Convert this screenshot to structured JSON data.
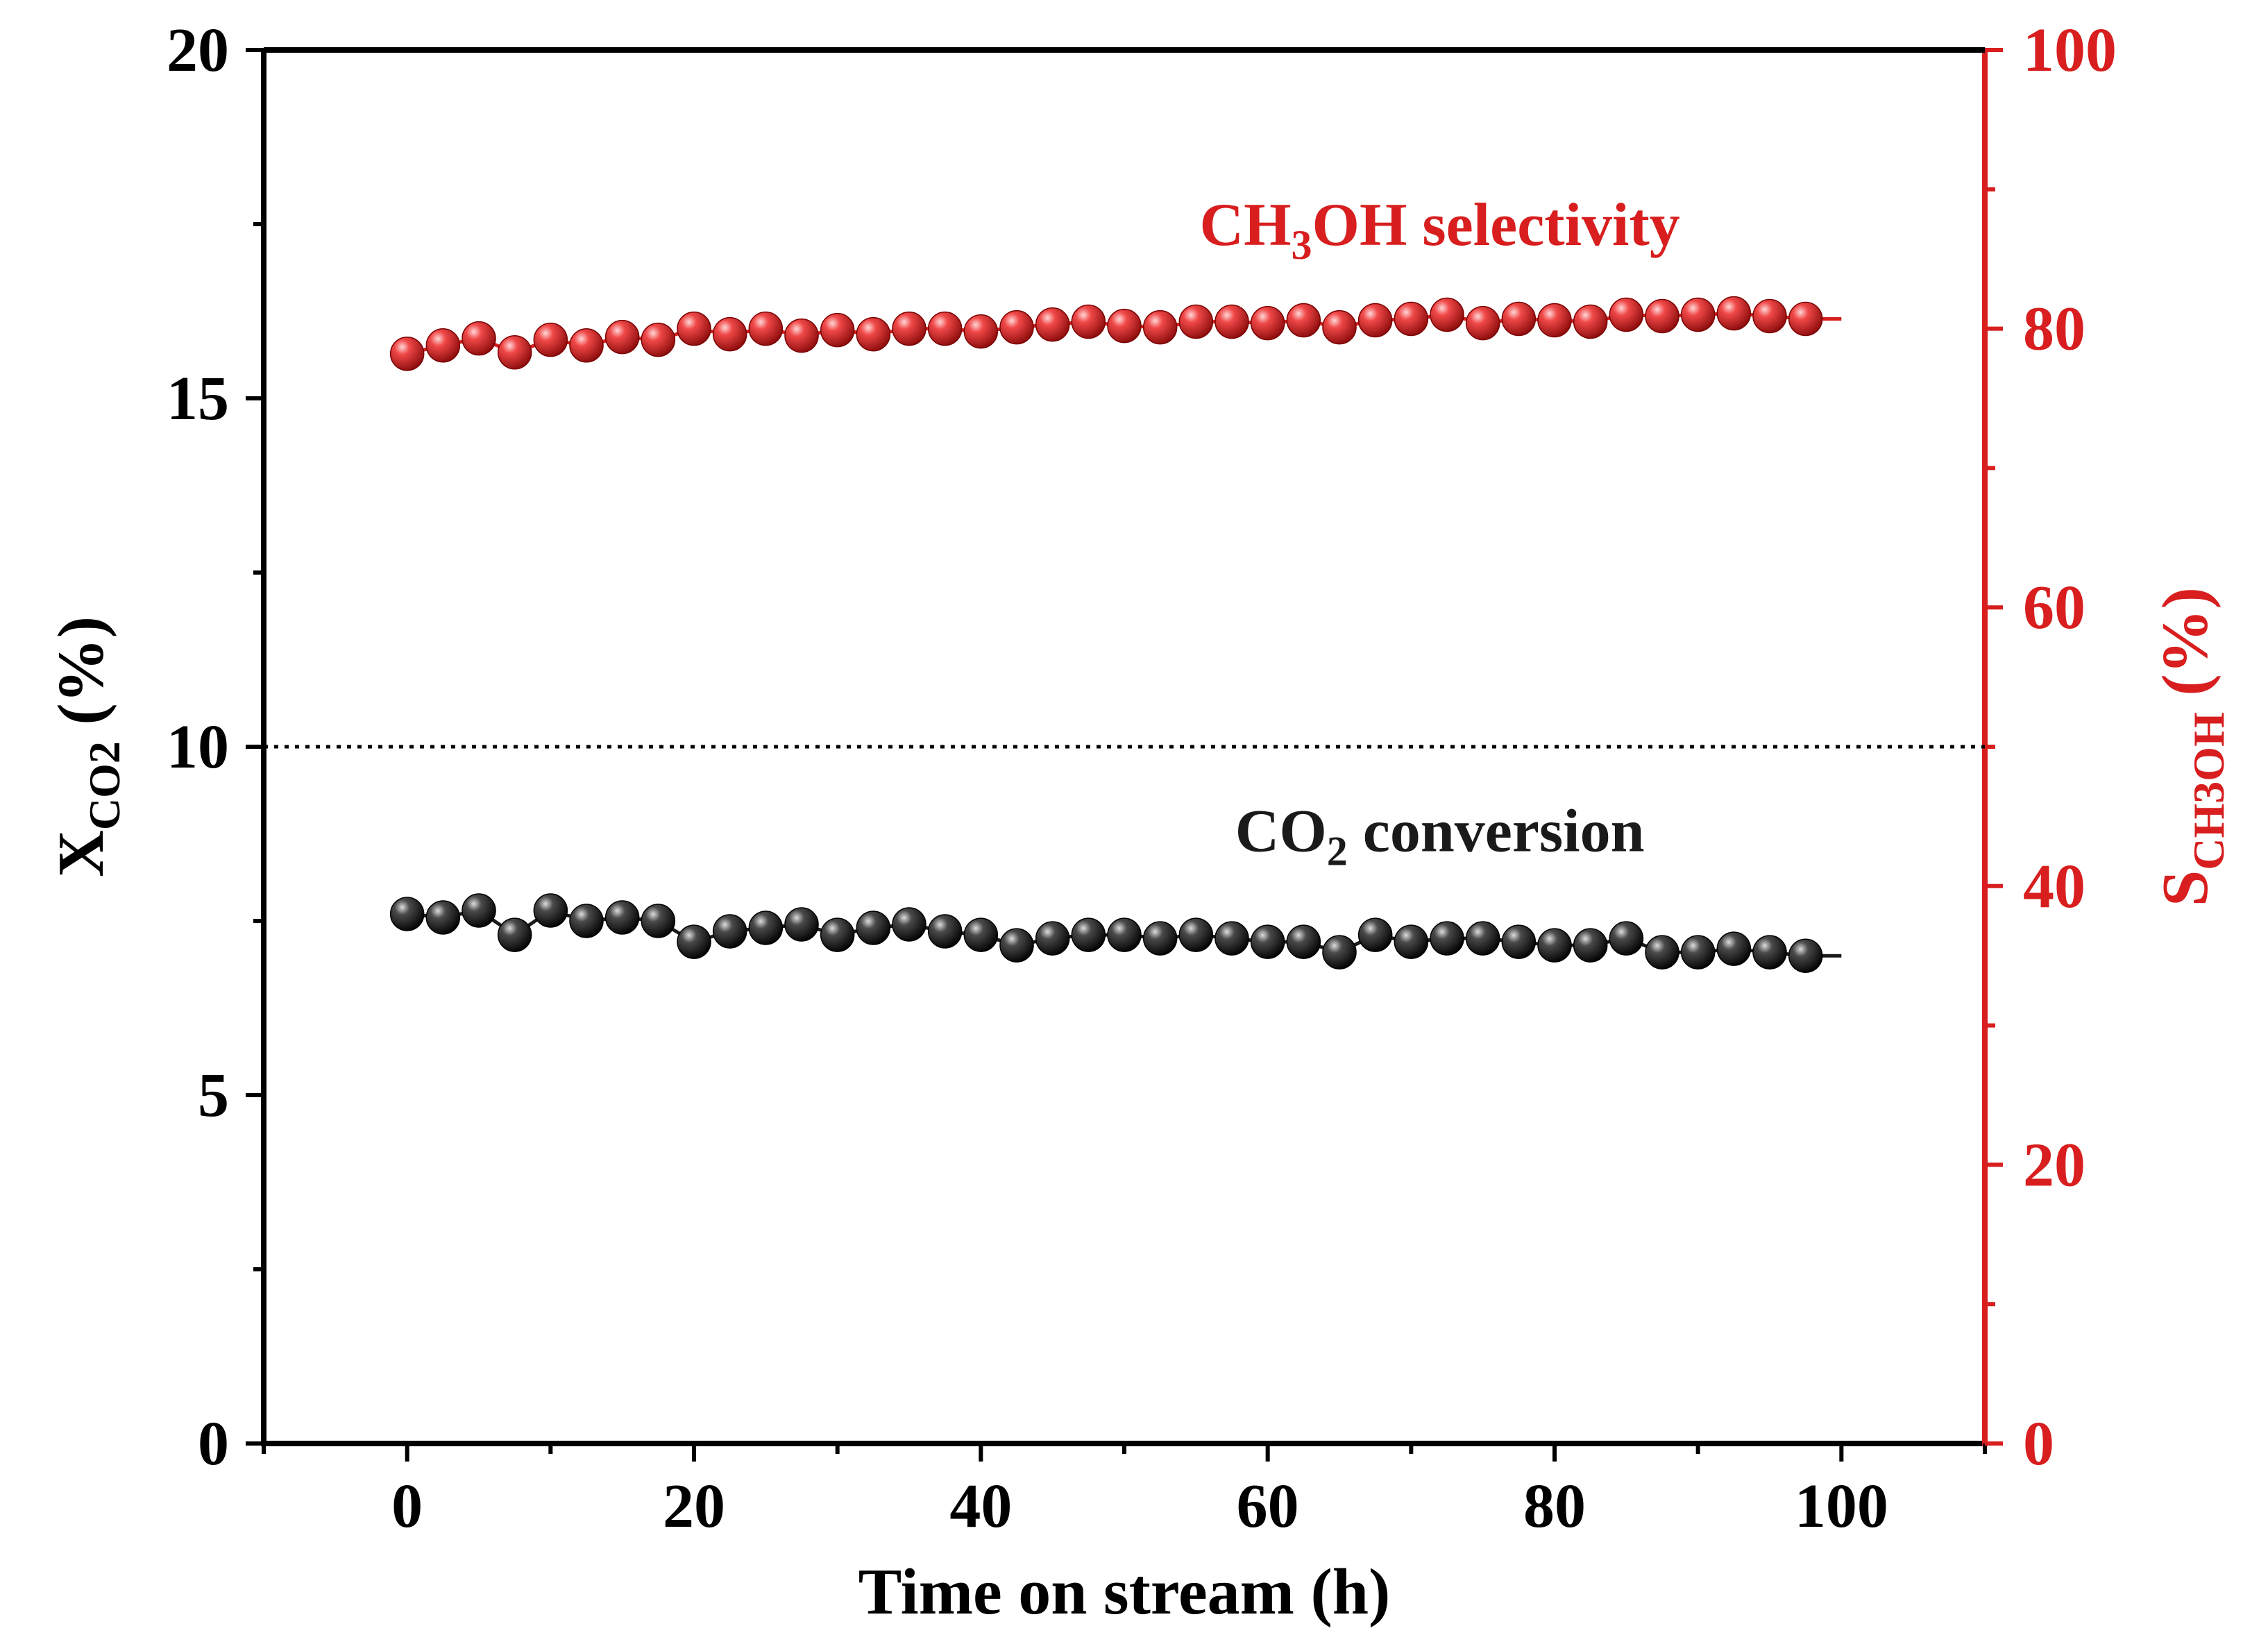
{
  "chart_data": {
    "type": "scatter",
    "xlabel": "Time on stream (h)",
    "ylabel_left": {
      "main": "X",
      "sub": "CO2",
      "suffix": " (%)"
    },
    "ylabel_right": {
      "main": "S",
      "sub": "CH3OH",
      "suffix": " (%)"
    },
    "xlim": [
      -10,
      110
    ],
    "ylim_left": [
      0,
      20
    ],
    "ylim_right": [
      0,
      100
    ],
    "x_ticks": [
      0,
      20,
      40,
      60,
      80,
      100
    ],
    "y_left_ticks": [
      0,
      5,
      10,
      15,
      20
    ],
    "y_right_ticks": [
      0,
      20,
      40,
      60,
      80,
      100
    ],
    "x_tick_labels": [
      "0",
      "20",
      "40",
      "60",
      "80",
      "100"
    ],
    "y_left_tick_labels": [
      "0",
      "5",
      "10",
      "15",
      "20"
    ],
    "y_right_tick_labels": [
      "0",
      "20",
      "40",
      "60",
      "80",
      "100"
    ],
    "reference_line": {
      "axis": "left",
      "y": 10,
      "style": "dotted"
    },
    "colors": {
      "left_axis": "#000000",
      "right_axis": "#d81e1e",
      "ch3oh": "#d81e1e",
      "co2": "#1a1a1a"
    },
    "annotations": [
      {
        "id": "ch3oh",
        "main": "CH",
        "sub": "3",
        "rest": "OH selectivity",
        "x": 72,
        "y_right": 86,
        "color": "#d81e1e"
      },
      {
        "id": "co2",
        "main": "CO",
        "sub": "2",
        "rest": " conversion",
        "x": 72,
        "y_left": 8.5,
        "color": "#1a1a1a"
      }
    ],
    "series": [
      {
        "name": "CH3OH selectivity",
        "axis": "right",
        "x": [
          0,
          2.5,
          5,
          7.5,
          10,
          12.5,
          15,
          17.5,
          20,
          22.5,
          25,
          27.5,
          30,
          32.5,
          35,
          37.5,
          40,
          42.5,
          45,
          47.5,
          50,
          52.5,
          55,
          57.5,
          60,
          62.5,
          65,
          67.5,
          70,
          72.5,
          75,
          77.5,
          80,
          82.5,
          85,
          87.5,
          90,
          92.5,
          95,
          97.5
        ],
        "values": [
          78.2,
          78.8,
          79.3,
          78.3,
          79.2,
          78.8,
          79.4,
          79.2,
          80.0,
          79.6,
          80.0,
          79.5,
          79.9,
          79.6,
          80.0,
          80.0,
          79.8,
          80.1,
          80.3,
          80.5,
          80.2,
          80.1,
          80.5,
          80.5,
          80.4,
          80.6,
          80.1,
          80.6,
          80.7,
          81.0,
          80.4,
          80.7,
          80.6,
          80.5,
          81.0,
          80.9,
          81.0,
          81.1,
          80.9,
          80.7
        ]
      },
      {
        "name": "CO2 conversion",
        "axis": "left",
        "x": [
          0,
          2.5,
          5,
          7.5,
          10,
          12.5,
          15,
          17.5,
          20,
          22.5,
          25,
          27.5,
          30,
          32.5,
          35,
          37.5,
          40,
          42.5,
          45,
          47.5,
          50,
          52.5,
          55,
          57.5,
          60,
          62.5,
          65,
          67.5,
          70,
          72.5,
          75,
          77.5,
          80,
          82.5,
          85,
          87.5,
          90,
          92.5,
          95,
          97.5
        ],
        "values": [
          7.6,
          7.55,
          7.65,
          7.3,
          7.65,
          7.5,
          7.55,
          7.5,
          7.2,
          7.35,
          7.4,
          7.45,
          7.3,
          7.4,
          7.45,
          7.35,
          7.3,
          7.15,
          7.25,
          7.3,
          7.3,
          7.25,
          7.3,
          7.25,
          7.2,
          7.2,
          7.05,
          7.3,
          7.2,
          7.25,
          7.25,
          7.2,
          7.15,
          7.15,
          7.25,
          7.05,
          7.05,
          7.1,
          7.05,
          7.0
        ]
      }
    ]
  }
}
